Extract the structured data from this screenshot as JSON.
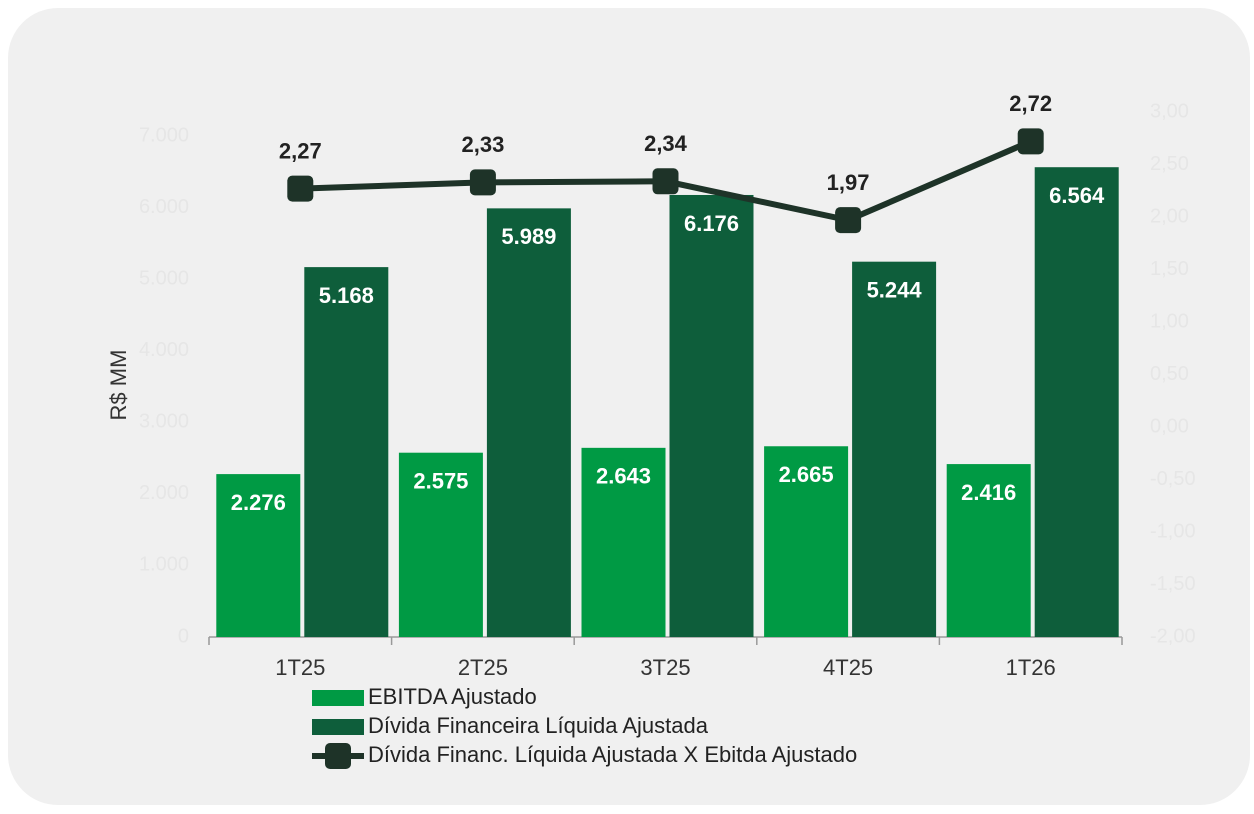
{
  "chart_data": {
    "type": "bar",
    "ylabel": "R$ MM",
    "categories": [
      "1T25",
      "2T25",
      "3T25",
      "4T25",
      "1T26"
    ],
    "series": [
      {
        "name": "EBITDA  Ajustado",
        "type": "bar",
        "color": "#009a44",
        "values": [
          2276,
          2575,
          2643,
          2665,
          2416
        ],
        "value_labels": [
          "2.276",
          "2.575",
          "2.643",
          "2.665",
          "2.416"
        ]
      },
      {
        "name": "Dívida Financeira Líquida Ajustada",
        "type": "bar",
        "color": "#0e5e3b",
        "values": [
          5168,
          5989,
          6176,
          5244,
          6564
        ],
        "value_labels": [
          "5.168",
          "5.989",
          "6.176",
          "5.244",
          "6.564"
        ]
      },
      {
        "name": "Dívida Financ. Líquida Ajustada X Ebitda Ajustado",
        "type": "line",
        "axis": "y2",
        "color": "#1e3328",
        "values": [
          2.27,
          2.33,
          2.34,
          1.97,
          2.72
        ],
        "value_labels": [
          "2,27",
          "2,33",
          "2,34",
          "1,97",
          "2,72"
        ]
      }
    ],
    "ylim": [
      0,
      7000
    ],
    "yticks": [
      0,
      {
        "value": 1000,
        "label": "1.000"
      },
      {
        "value": 2000,
        "label": "2.000"
      },
      {
        "value": 3000,
        "label": "3.000"
      },
      {
        "value": 4000,
        "label": "4.000"
      },
      {
        "value": 5000,
        "label": "5.000"
      },
      {
        "value": 6000,
        "label": "6.000"
      },
      {
        "value": 7000,
        "label": "7.000"
      }
    ],
    "y2lim": [
      -2,
      3
    ],
    "y2ticks": [
      {
        "value": -2,
        "label": "-2,00"
      },
      {
        "value": -1.5,
        "label": "-1,50"
      },
      {
        "value": -1,
        "label": "-1,00"
      },
      {
        "value": -0.5,
        "label": "-0,50"
      },
      {
        "value": 0,
        "label": "0,00"
      },
      {
        "value": 0.5,
        "label": "0,50"
      },
      {
        "value": 1,
        "label": "1,00"
      },
      {
        "value": 1.5,
        "label": "1,50"
      },
      {
        "value": 2,
        "label": "2,00"
      },
      {
        "value": 2.5,
        "label": "2,50"
      },
      {
        "value": 3,
        "label": "3,00"
      }
    ]
  }
}
